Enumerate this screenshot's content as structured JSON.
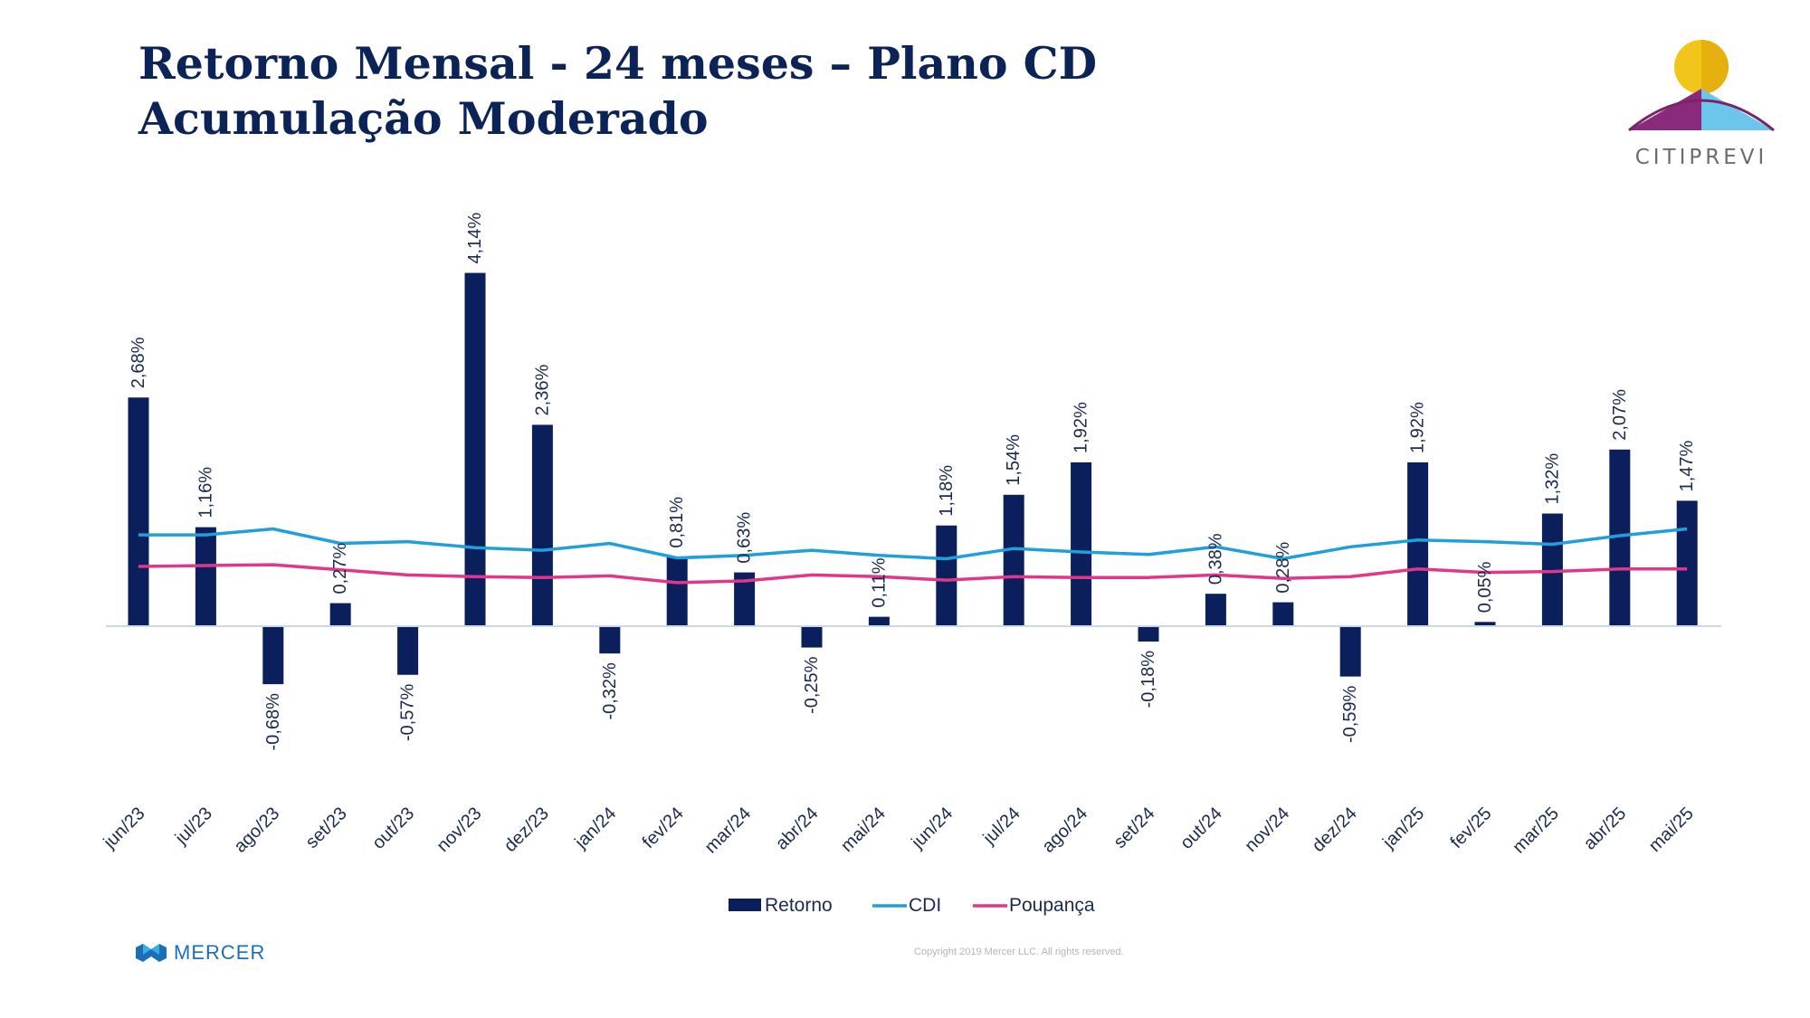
{
  "slide": {
    "title": "Retorno Mensal - 24 meses – Plano CD Acumulação Moderado",
    "logo_text": "CITIPREVI",
    "mercer_text": "MERCER",
    "copyright": "Copyright 2019 Mercer LLC. All rights reserved."
  },
  "colors": {
    "title": "#0b2357",
    "retorno": "#0b1f5c",
    "cdi": "#1fa0dc",
    "poupanca": "#e0378a",
    "axis": "#c9d9ea",
    "text": "#1a2a50"
  },
  "chart_data": {
    "type": "bar",
    "categories": [
      "jun/23",
      "jul/23",
      "ago/23",
      "set/23",
      "out/23",
      "nov/23",
      "dez/23",
      "jan/24",
      "fev/24",
      "mar/24",
      "abr/24",
      "mai/24",
      "jun/24",
      "jul/24",
      "ago/24",
      "set/24",
      "out/24",
      "nov/24",
      "dez/24",
      "jan/25",
      "fev/25",
      "mar/25",
      "abr/25",
      "mai/25"
    ],
    "series": [
      {
        "name": "Retorno",
        "type": "bar",
        "values": [
          2.68,
          1.16,
          -0.68,
          0.27,
          -0.57,
          4.14,
          2.36,
          -0.32,
          0.81,
          0.63,
          -0.25,
          0.11,
          1.18,
          1.54,
          1.92,
          -0.18,
          0.38,
          0.28,
          -0.59,
          1.92,
          0.05,
          1.32,
          2.07,
          1.47
        ],
        "labels": [
          "2,68%",
          "1,16%",
          "-0,68%",
          "0,27%",
          "-0,57%",
          "4,14%",
          "2,36%",
          "-0,32%",
          "0,81%",
          "0,63%",
          "-0,25%",
          "0,11%",
          "1,18%",
          "1,54%",
          "1,92%",
          "-0,18%",
          "0,38%",
          "0,28%",
          "-0,59%",
          "1,92%",
          "0,05%",
          "1,32%",
          "2,07%",
          "1,47%"
        ]
      },
      {
        "name": "CDI",
        "type": "line",
        "values": [
          1.07,
          1.07,
          1.14,
          0.97,
          0.99,
          0.92,
          0.89,
          0.97,
          0.8,
          0.83,
          0.89,
          0.83,
          0.79,
          0.91,
          0.87,
          0.84,
          0.93,
          0.79,
          0.93,
          1.01,
          0.99,
          0.96,
          1.06,
          1.14
        ]
      },
      {
        "name": "Poupança",
        "type": "line",
        "values": [
          0.7,
          0.71,
          0.72,
          0.66,
          0.6,
          0.58,
          0.57,
          0.59,
          0.51,
          0.53,
          0.6,
          0.58,
          0.54,
          0.58,
          0.57,
          0.57,
          0.6,
          0.56,
          0.58,
          0.67,
          0.63,
          0.64,
          0.67,
          0.67
        ]
      }
    ],
    "legend": [
      "Retorno",
      "CDI",
      "Poupança"
    ],
    "legend_position": "bottom",
    "ylim": [
      -1.8,
      4.7
    ],
    "grid": false
  }
}
